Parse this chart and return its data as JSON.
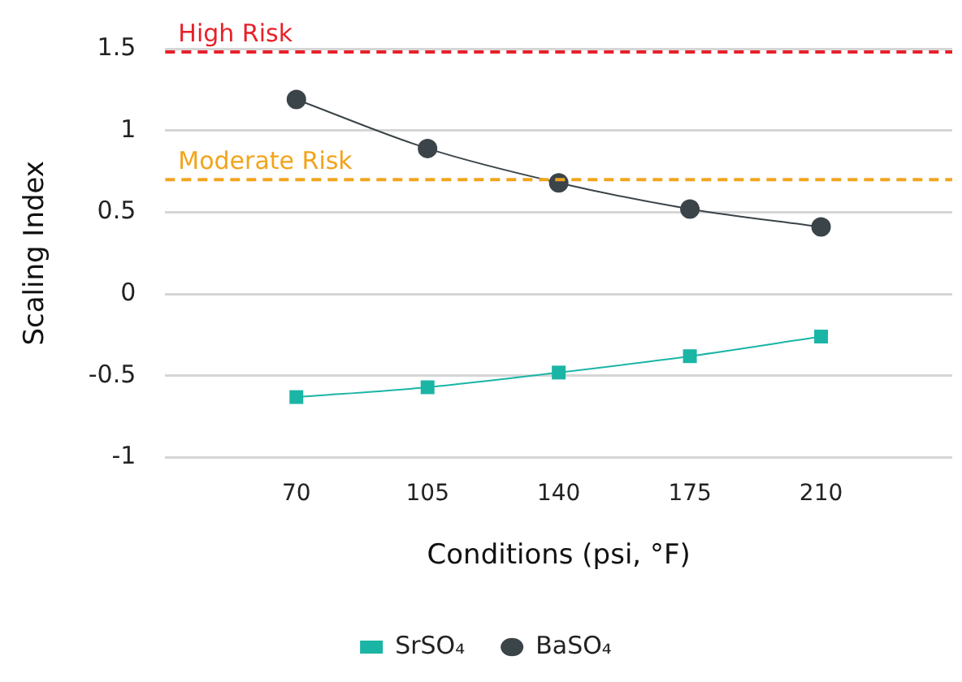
{
  "chart_data": {
    "type": "line",
    "xlabel": "Conditions (psi, °F)",
    "ylabel": "Scaling Index",
    "x": [
      70,
      105,
      140,
      175,
      210
    ],
    "xlim": [
      35,
      245
    ],
    "xticks": [
      70,
      105,
      140,
      175,
      210
    ],
    "ylim": [
      -1,
      1.5
    ],
    "yticks": [
      {
        "value": -1,
        "label": "-1"
      },
      {
        "value": -0.5,
        "label": "-0.5"
      },
      0,
      0.5,
      1,
      1.5
    ],
    "series": [
      {
        "name": "SrSO₄",
        "color": "#1ab5a5",
        "marker": "square",
        "values": [
          -0.63,
          -0.57,
          -0.48,
          -0.38,
          -0.26
        ]
      },
      {
        "name": "BaSO₄",
        "color": "#3b4449",
        "marker": "circle",
        "values": [
          1.19,
          0.89,
          0.68,
          0.52,
          0.41
        ]
      }
    ],
    "ref_lines": [
      {
        "axis": "y",
        "value": 1.48,
        "label": "High Risk",
        "color": "#e8202a",
        "line_style": "dashed"
      },
      {
        "axis": "y",
        "value": 0.7,
        "label": "Moderate Risk",
        "color": "#f2a41c",
        "line_style": "dashed"
      }
    ],
    "grid": "y",
    "legend": "bottom"
  }
}
